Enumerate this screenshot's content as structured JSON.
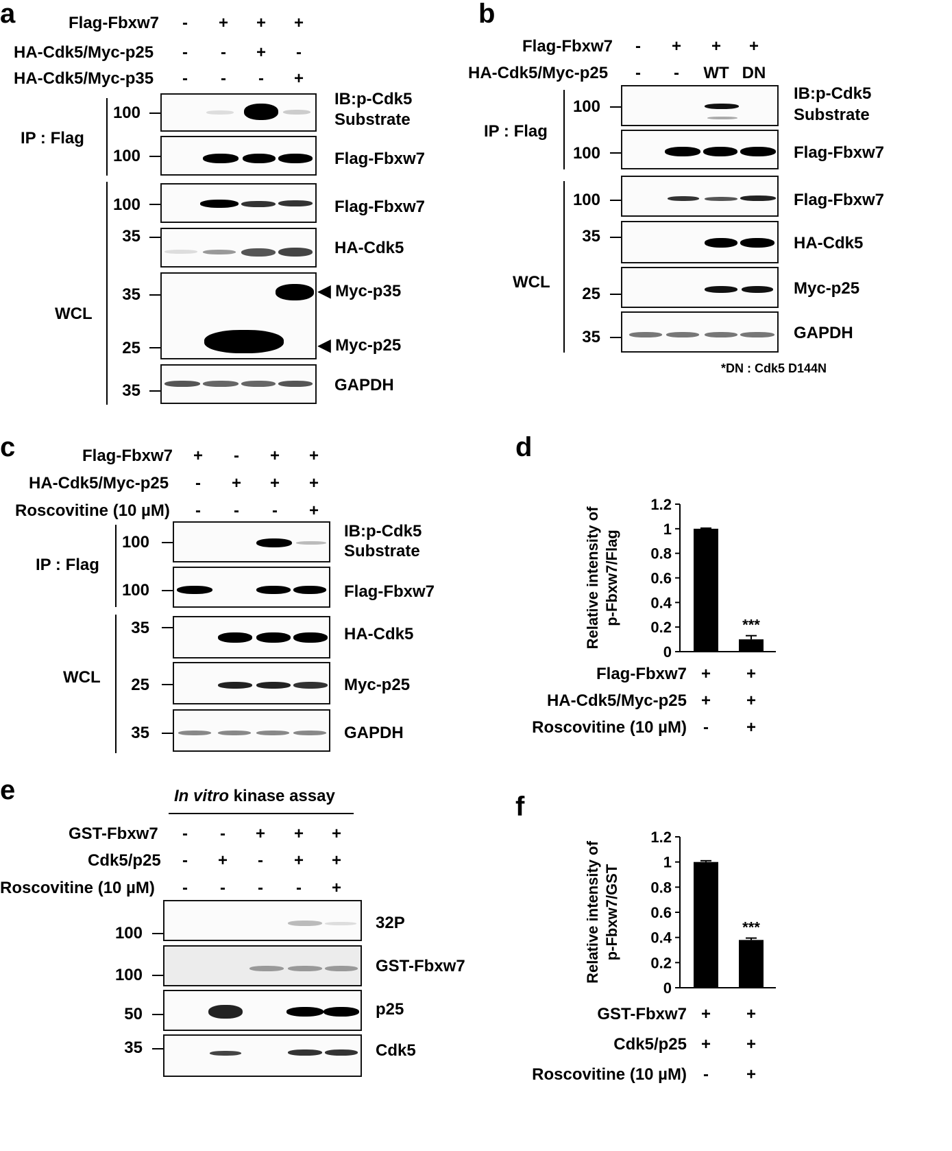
{
  "panel_a": {
    "label": "a",
    "rows": [
      {
        "name": "Flag-Fbxw7",
        "signs": [
          "-",
          "+",
          "+",
          "+"
        ]
      },
      {
        "name": "HA-Cdk5/Myc-p25",
        "signs": [
          "-",
          "-",
          "+",
          "-"
        ]
      },
      {
        "name": "HA-Cdk5/Myc-p35",
        "signs": [
          "-",
          "-",
          "-",
          "+"
        ]
      }
    ],
    "ip_label": "IP : Flag",
    "wcl_label": "WCL",
    "blots": [
      {
        "mw": "100",
        "label": "IB:p-Cdk5",
        "label2": "Substrate"
      },
      {
        "mw": "100",
        "label": "Flag-Fbxw7"
      },
      {
        "mw": "100",
        "label": "Flag-Fbxw7"
      },
      {
        "mw": "35",
        "label": "HA-Cdk5"
      },
      {
        "mw": "35",
        "mw2": "25",
        "label": "Myc-p35",
        "label2": "Myc-p25"
      },
      {
        "mw": "35",
        "label": "GAPDH"
      }
    ]
  },
  "panel_b": {
    "label": "b",
    "rows": [
      {
        "name": "Flag-Fbxw7",
        "signs": [
          "-",
          "+",
          "+",
          "+"
        ]
      },
      {
        "name": "HA-Cdk5/Myc-p25",
        "signs": [
          "-",
          "-",
          "WT",
          "DN"
        ]
      }
    ],
    "ip_label": "IP : Flag",
    "wcl_label": "WCL",
    "blots": [
      {
        "mw": "100",
        "label": "IB:p-Cdk5",
        "label2": "Substrate"
      },
      {
        "mw": "100",
        "label": "Flag-Fbxw7"
      },
      {
        "mw": "100",
        "label": "Flag-Fbxw7"
      },
      {
        "mw": "35",
        "label": "HA-Cdk5"
      },
      {
        "mw": "25",
        "label": "Myc-p25"
      },
      {
        "mw": "35",
        "label": "GAPDH"
      }
    ],
    "footnote": "*DN : Cdk5 D144N"
  },
  "panel_c": {
    "label": "c",
    "rows": [
      {
        "name": "Flag-Fbxw7",
        "signs": [
          "+",
          "-",
          "+",
          "+"
        ]
      },
      {
        "name": "HA-Cdk5/Myc-p25",
        "signs": [
          "-",
          "+",
          "+",
          "+"
        ]
      },
      {
        "name": "Roscovitine (10 µM)",
        "signs": [
          "-",
          "-",
          "-",
          "+"
        ]
      }
    ],
    "ip_label": "IP : Flag",
    "wcl_label": "WCL",
    "blots": [
      {
        "mw": "100",
        "label": "IB:p-Cdk5",
        "label2": "Substrate"
      },
      {
        "mw": "100",
        "label": "Flag-Fbxw7"
      },
      {
        "mw": "35",
        "label": "HA-Cdk5"
      },
      {
        "mw": "25",
        "label": "Myc-p25"
      },
      {
        "mw": "35",
        "label": "GAPDH"
      }
    ]
  },
  "panel_e": {
    "label": "e",
    "assay_title_italic": "In vitro",
    "assay_title_rest": " kinase assay",
    "rows": [
      {
        "name": "GST-Fbxw7",
        "signs": [
          "-",
          "-",
          "+",
          "+",
          "+"
        ]
      },
      {
        "name": "Cdk5/p25",
        "signs": [
          "-",
          "+",
          "-",
          "+",
          "+"
        ]
      },
      {
        "name": "Roscovitine (10 µM)",
        "signs": [
          "-",
          "-",
          "-",
          "-",
          "+"
        ]
      }
    ],
    "blots": [
      {
        "mw": "100",
        "label": "32P"
      },
      {
        "mw": "100",
        "label": "GST-Fbxw7"
      },
      {
        "mw": "50",
        "label": "p25"
      },
      {
        "mw": "35",
        "label": "Cdk5"
      }
    ]
  },
  "chart_data": [
    {
      "panel": "d",
      "type": "bar",
      "title": "",
      "ylabel": "Relative intensity of p-Fbxw7/Flag",
      "ylabel_line1": "Relative intensity of",
      "ylabel_line2": "p-Fbxw7/Flag",
      "ylim": [
        0,
        1.2
      ],
      "yticks": [
        "0",
        "0.2",
        "0.4",
        "0.6",
        "0.8",
        "1",
        "1.2"
      ],
      "values": [
        1.0,
        0.1
      ],
      "errors": [
        0.005,
        0.03
      ],
      "significance": [
        "",
        "***"
      ],
      "conditions": [
        {
          "name": "Flag-Fbxw7",
          "signs": [
            "+",
            "+"
          ]
        },
        {
          "name": "HA-Cdk5/Myc-p25",
          "signs": [
            "+",
            "+"
          ]
        },
        {
          "name": "Roscovitine (10 µM)",
          "signs": [
            "-",
            "+"
          ]
        }
      ]
    },
    {
      "panel": "f",
      "type": "bar",
      "title": "",
      "ylabel": "Relative intensity of p-Fbxw7/GST",
      "ylabel_line1": "Relative intensity of",
      "ylabel_line2": "p-Fbxw7/GST",
      "ylim": [
        0,
        1.2
      ],
      "yticks": [
        "0",
        "0.2",
        "0.4",
        "0.6",
        "0.8",
        "1",
        "1.2"
      ],
      "values": [
        1.0,
        0.38
      ],
      "errors": [
        0.01,
        0.015
      ],
      "significance": [
        "",
        "***"
      ],
      "conditions": [
        {
          "name": "GST-Fbxw7",
          "signs": [
            "+",
            "+"
          ]
        },
        {
          "name": "Cdk5/p25",
          "signs": [
            "+",
            "+"
          ]
        },
        {
          "name": "Roscovitine (10 µM)",
          "signs": [
            "-",
            "+"
          ]
        }
      ]
    }
  ]
}
